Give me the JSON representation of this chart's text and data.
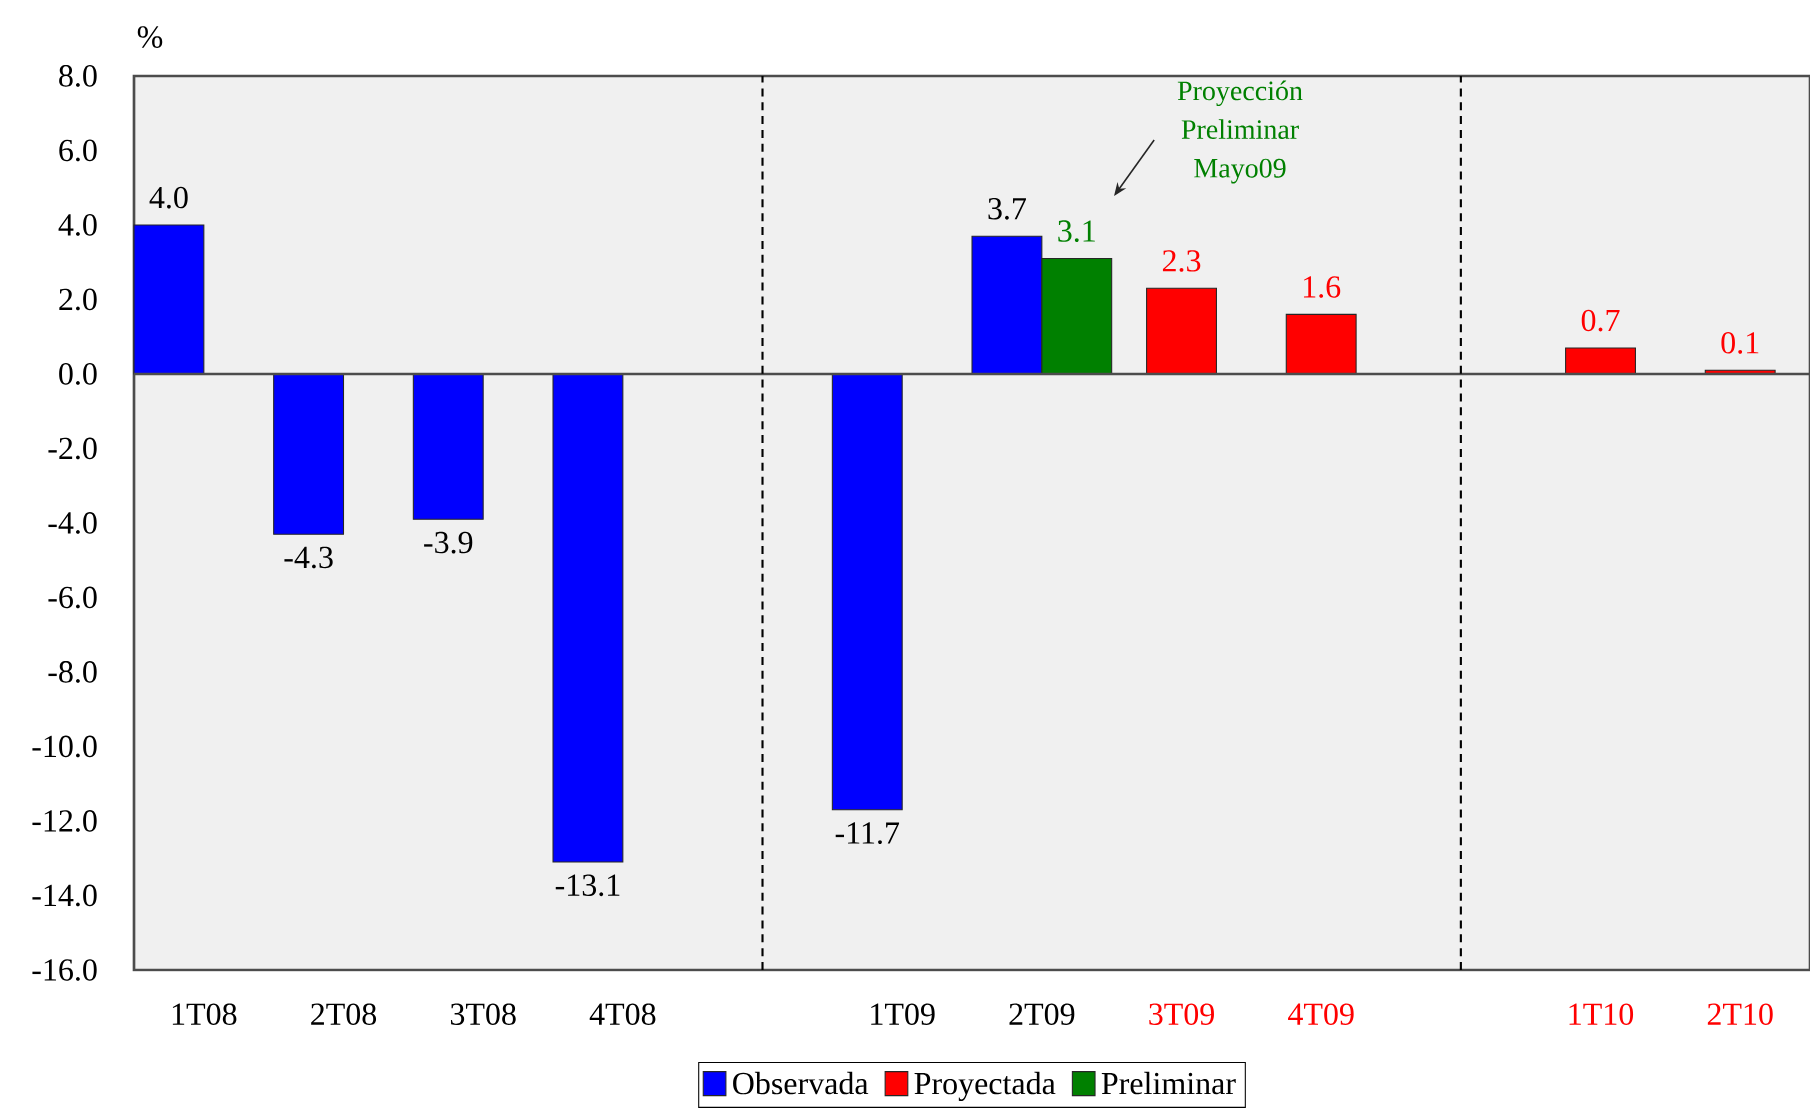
{
  "chart_data": {
    "type": "bar",
    "ylabel": "%",
    "categories": [
      "1T08",
      "2T08",
      "3T08",
      "4T08",
      null,
      "1T09",
      "2T09",
      "3T09",
      "4T09",
      null,
      "1T10",
      "2T10"
    ],
    "series": [
      {
        "name": "Observada",
        "color": "#0000ff",
        "values": [
          4.0,
          -4.3,
          -3.9,
          -13.1,
          null,
          -11.7,
          3.7,
          null,
          null,
          null,
          null,
          null
        ],
        "value_labels": [
          "4.0",
          "-4.3",
          "-3.9",
          "-13.1",
          null,
          "-11.7",
          "3.7",
          null,
          null,
          null,
          null,
          null
        ]
      },
      {
        "name": "Proyectada",
        "color": "#ff0000",
        "values": [
          null,
          null,
          null,
          null,
          null,
          null,
          null,
          2.3,
          1.6,
          null,
          0.7,
          0.1
        ],
        "value_labels": [
          null,
          null,
          null,
          null,
          null,
          null,
          null,
          "2.3",
          "1.6",
          null,
          "0.7",
          "0.1"
        ]
      },
      {
        "name": "Preliminar",
        "color": "#008000",
        "values": [
          null,
          null,
          null,
          null,
          null,
          null,
          3.1,
          null,
          null,
          null,
          null,
          null
        ],
        "value_labels": [
          null,
          null,
          null,
          null,
          null,
          null,
          "3.1",
          null,
          null,
          null,
          null,
          null
        ]
      }
    ],
    "ylim": [
      -16,
      8
    ],
    "yticks": [
      {
        "value": -16,
        "label": "-16.0"
      },
      {
        "value": -14,
        "label": "-14.0"
      },
      {
        "value": -12,
        "label": "-12.0"
      },
      {
        "value": -10,
        "label": "-10.0"
      },
      {
        "value": -8,
        "label": "-8.0"
      },
      {
        "value": -6,
        "label": "-6.0"
      },
      {
        "value": -4,
        "label": "-4.0"
      },
      {
        "value": -2,
        "label": "-2.0"
      },
      {
        "value": 0,
        "label": "0.0"
      },
      {
        "value": 2,
        "label": "2.0"
      },
      {
        "value": 4,
        "label": "4.0"
      },
      {
        "value": 6,
        "label": "6.0"
      },
      {
        "value": 8,
        "label": "8.0"
      }
    ],
    "annotations": [
      "Proyección Preliminar Mayo09"
    ],
    "legend": "bottom"
  }
}
